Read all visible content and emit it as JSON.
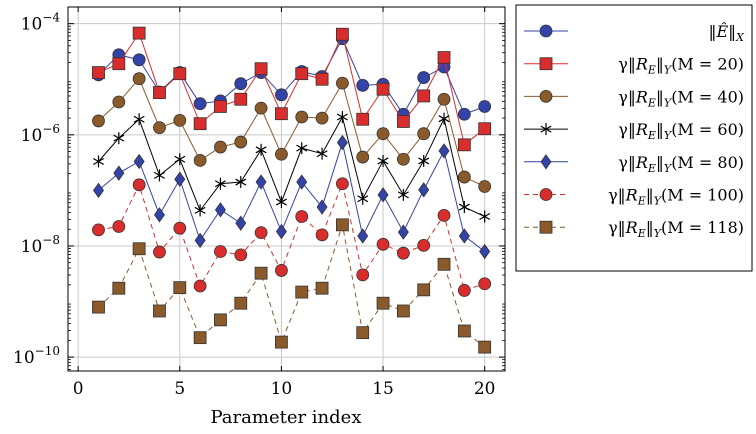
{
  "chart_data": {
    "type": "line",
    "xlabel": "Parameter index",
    "ylabel": "",
    "yscale": "log",
    "xlim": [
      -0.5,
      21
    ],
    "ylim_exponent": [
      -10.25,
      -3.7
    ],
    "x_ticks": [
      0,
      5,
      10,
      15,
      20
    ],
    "x_tick_labels": [
      "0",
      "5",
      "10",
      "15",
      "20"
    ],
    "y_ticks_exponent": [
      -10,
      -8,
      -6,
      -4
    ],
    "y_tick_labels": [
      {
        "base": "10",
        "exp": "−10"
      },
      {
        "base": "10",
        "exp": "−8"
      },
      {
        "base": "10",
        "exp": "−6"
      },
      {
        "base": "10",
        "exp": "−4"
      }
    ],
    "grid": true,
    "legend_position": "outside-right",
    "x": [
      1,
      2,
      3,
      4,
      5,
      6,
      7,
      8,
      9,
      10,
      11,
      12,
      13,
      14,
      15,
      16,
      17,
      18,
      19,
      20
    ],
    "series": [
      {
        "name": "‖Ê‖_X",
        "legend": {
          "pre": "‖",
          "main": "Ê",
          "post": "‖",
          "sub": "X",
          "suffix": ""
        },
        "color": "#3343a8",
        "marker": "circle",
        "dashed": false,
        "markerSize": 6,
        "values_exponent": [
          -4.92,
          -4.56,
          -4.65,
          -5.23,
          -4.88,
          -5.44,
          -5.39,
          -5.08,
          -4.88,
          -5.28,
          -4.86,
          -4.95,
          -4.27,
          -5.11,
          -5.09,
          -5.63,
          -4.97,
          -4.78,
          -5.63,
          -5.49
        ]
      },
      {
        "name": "γ‖R_E‖_Y(M = 20)",
        "legend": {
          "pre": "γ‖",
          "main": "R",
          "mainsub": "E",
          "post": "‖",
          "sub": "Y",
          "suffix": "(M = 20)"
        },
        "color": "#d92c2c",
        "marker": "square",
        "dashed": false,
        "markerSize": 6,
        "values_exponent": [
          -4.88,
          -4.72,
          -4.17,
          -5.24,
          -4.9,
          -5.8,
          -5.49,
          -5.36,
          -4.81,
          -5.62,
          -4.9,
          -5.0,
          -4.19,
          -5.72,
          -5.18,
          -5.76,
          -5.3,
          -4.61,
          -6.18,
          -5.89
        ]
      },
      {
        "name": "γ‖R_E‖_Y(M = 40)",
        "legend": {
          "pre": "γ‖",
          "main": "R",
          "mainsub": "E",
          "post": "‖",
          "sub": "Y",
          "suffix": "(M = 40)"
        },
        "color": "#8b5a2b",
        "marker": "circle",
        "dashed": false,
        "markerSize": 6,
        "values_exponent": [
          -5.75,
          -5.41,
          -4.99,
          -5.87,
          -5.74,
          -6.46,
          -6.22,
          -6.13,
          -5.52,
          -6.35,
          -5.68,
          -5.7,
          -5.07,
          -6.4,
          -5.98,
          -6.44,
          -5.98,
          -5.36,
          -6.76,
          -6.93
        ]
      },
      {
        "name": "γ‖R_E‖_Y(M = 60)",
        "legend": {
          "pre": "γ‖",
          "main": "R",
          "mainsub": "E",
          "post": "‖",
          "sub": "Y",
          "suffix": "(M = 60)"
        },
        "color": "#000000",
        "marker": "star",
        "dashed": false,
        "markerSize": 6,
        "values_exponent": [
          -6.48,
          -6.06,
          -5.72,
          -6.73,
          -6.44,
          -7.36,
          -6.88,
          -6.85,
          -6.27,
          -7.21,
          -6.24,
          -6.34,
          -5.68,
          -7.15,
          -6.47,
          -7.08,
          -6.47,
          -5.71,
          -7.3,
          -7.47
        ]
      },
      {
        "name": "γ‖R_E‖_Y(M = 80)",
        "legend": {
          "pre": "γ‖",
          "main": "R",
          "mainsub": "E",
          "post": "‖",
          "sub": "Y",
          "suffix": "(M = 80)"
        },
        "color": "#3343a8",
        "marker": "diamond",
        "dashed": false,
        "markerSize": 6,
        "values_exponent": [
          -7.0,
          -6.69,
          -6.48,
          -7.44,
          -6.8,
          -7.9,
          -7.35,
          -7.59,
          -6.85,
          -7.74,
          -6.85,
          -7.3,
          -6.14,
          -7.82,
          -7.08,
          -7.75,
          -6.99,
          -6.29,
          -7.82,
          -8.1
        ]
      },
      {
        "name": "γ‖R_E‖_Y(M = 100)",
        "legend": {
          "pre": "γ‖",
          "main": "R",
          "mainsub": "E",
          "post": "‖",
          "sub": "Y",
          "suffix": "(M = 100)"
        },
        "color": "#d92c2c",
        "marker": "circle",
        "dashed": true,
        "markerSize": 6,
        "values_exponent": [
          -7.71,
          -7.65,
          -6.9,
          -8.11,
          -7.68,
          -8.72,
          -8.1,
          -8.16,
          -7.76,
          -8.44,
          -7.47,
          -7.8,
          -6.88,
          -8.52,
          -7.97,
          -8.13,
          -7.99,
          -7.45,
          -8.8,
          -8.68
        ]
      },
      {
        "name": "γ‖R_E‖_Y(M = 118)",
        "legend": {
          "pre": "γ‖",
          "main": "R",
          "mainsub": "E",
          "post": "‖",
          "sub": "Y",
          "suffix": "(M = 118)"
        },
        "color": "#8b5a2b",
        "marker": "square",
        "dashed": true,
        "markerSize": 6,
        "values_exponent": [
          -9.1,
          -8.76,
          -8.05,
          -9.17,
          -8.75,
          -9.65,
          -9.33,
          -9.03,
          -8.49,
          -9.73,
          -8.83,
          -8.76,
          -7.62,
          -9.56,
          -9.03,
          -9.17,
          -8.79,
          -8.33,
          -9.53,
          -9.82
        ]
      }
    ]
  }
}
